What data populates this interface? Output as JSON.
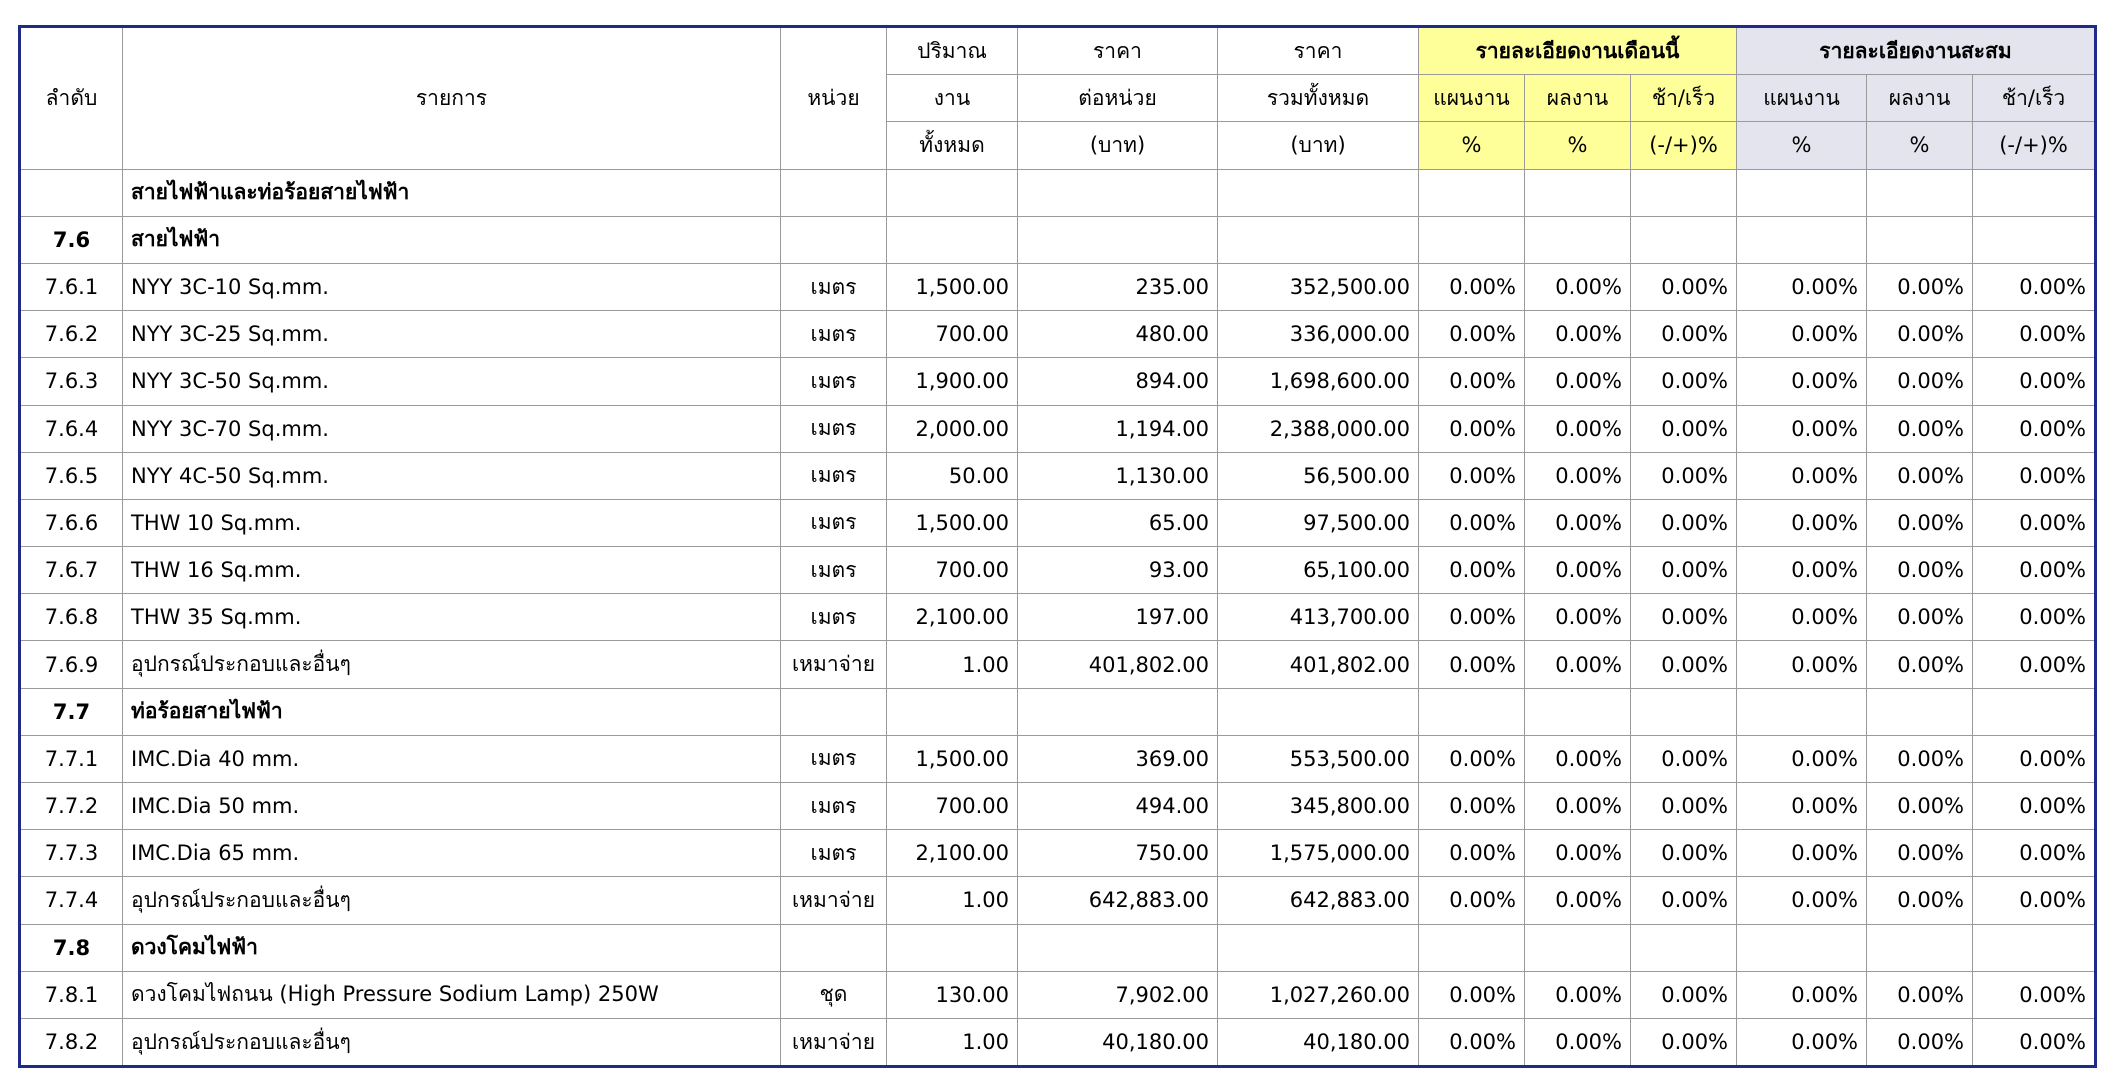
{
  "header": {
    "seq": "ลำดับ",
    "item": "รายการ",
    "unit": "หน่วย",
    "qty": [
      "ปริมาณ",
      "งาน",
      "ทั้งหมด"
    ],
    "unit_price": [
      "ราคา",
      "ต่อหน่วย",
      "(บาท)"
    ],
    "total_price": [
      "ราคา",
      "รวมทั้งหมด",
      "(บาท)"
    ],
    "monthly_group": "รายละเอียดงานเดือนนี้",
    "cumulative_group": "รายละเอียดงานสะสม",
    "plan": "แผนงาน",
    "result": "ผลงาน",
    "diff": "ช้า/เร็ว",
    "pct": "%",
    "diff_pct": "(-/+)%"
  },
  "title_row": "สายไฟฟ้าและท่อร้อยสายไฟฟ้า",
  "rows": [
    {
      "type": "section",
      "seq": "7.6",
      "item": "สายไฟฟ้า"
    },
    {
      "type": "item",
      "seq": "7.6.1",
      "item": "NYY 3C-10 Sq.mm.",
      "unit": "เมตร",
      "qty": "1,500.00",
      "price": "235.00",
      "total": "352,500.00",
      "m_plan": "0.00%",
      "m_result": "0.00%",
      "m_diff": "0.00%",
      "c_plan": "0.00%",
      "c_result": "0.00%",
      "c_diff": "0.00%"
    },
    {
      "type": "item",
      "seq": "7.6.2",
      "item": "NYY 3C-25 Sq.mm.",
      "unit": "เมตร",
      "qty": "700.00",
      "price": "480.00",
      "total": "336,000.00",
      "m_plan": "0.00%",
      "m_result": "0.00%",
      "m_diff": "0.00%",
      "c_plan": "0.00%",
      "c_result": "0.00%",
      "c_diff": "0.00%"
    },
    {
      "type": "item",
      "seq": "7.6.3",
      "item": "NYY 3C-50 Sq.mm.",
      "unit": "เมตร",
      "qty": "1,900.00",
      "price": "894.00",
      "total": "1,698,600.00",
      "m_plan": "0.00%",
      "m_result": "0.00%",
      "m_diff": "0.00%",
      "c_plan": "0.00%",
      "c_result": "0.00%",
      "c_diff": "0.00%"
    },
    {
      "type": "item",
      "seq": "7.6.4",
      "item": "NYY 3C-70 Sq.mm.",
      "unit": "เมตร",
      "qty": "2,000.00",
      "price": "1,194.00",
      "total": "2,388,000.00",
      "m_plan": "0.00%",
      "m_result": "0.00%",
      "m_diff": "0.00%",
      "c_plan": "0.00%",
      "c_result": "0.00%",
      "c_diff": "0.00%"
    },
    {
      "type": "item",
      "seq": "7.6.5",
      "item": "NYY 4C-50 Sq.mm.",
      "unit": "เมตร",
      "qty": "50.00",
      "price": "1,130.00",
      "total": "56,500.00",
      "m_plan": "0.00%",
      "m_result": "0.00%",
      "m_diff": "0.00%",
      "c_plan": "0.00%",
      "c_result": "0.00%",
      "c_diff": "0.00%"
    },
    {
      "type": "item",
      "seq": "7.6.6",
      "item": "THW 10 Sq.mm.",
      "unit": "เมตร",
      "qty": "1,500.00",
      "price": "65.00",
      "total": "97,500.00",
      "m_plan": "0.00%",
      "m_result": "0.00%",
      "m_diff": "0.00%",
      "c_plan": "0.00%",
      "c_result": "0.00%",
      "c_diff": "0.00%"
    },
    {
      "type": "item",
      "seq": "7.6.7",
      "item": "THW 16 Sq.mm.",
      "unit": "เมตร",
      "qty": "700.00",
      "price": "93.00",
      "total": "65,100.00",
      "m_plan": "0.00%",
      "m_result": "0.00%",
      "m_diff": "0.00%",
      "c_plan": "0.00%",
      "c_result": "0.00%",
      "c_diff": "0.00%"
    },
    {
      "type": "item",
      "seq": "7.6.8",
      "item": "THW 35 Sq.mm.",
      "unit": "เมตร",
      "qty": "2,100.00",
      "price": "197.00",
      "total": "413,700.00",
      "m_plan": "0.00%",
      "m_result": "0.00%",
      "m_diff": "0.00%",
      "c_plan": "0.00%",
      "c_result": "0.00%",
      "c_diff": "0.00%"
    },
    {
      "type": "item",
      "seq": "7.6.9",
      "item": "อุปกรณ์ประกอบและอื่นๆ",
      "unit": "เหมาจ่าย",
      "qty": "1.00",
      "price": "401,802.00",
      "total": "401,802.00",
      "m_plan": "0.00%",
      "m_result": "0.00%",
      "m_diff": "0.00%",
      "c_plan": "0.00%",
      "c_result": "0.00%",
      "c_diff": "0.00%"
    },
    {
      "type": "section",
      "seq": "7.7",
      "item": "ท่อร้อยสายไฟฟ้า"
    },
    {
      "type": "item",
      "seq": "7.7.1",
      "item": "IMC.Dia 40 mm.",
      "unit": "เมตร",
      "qty": "1,500.00",
      "price": "369.00",
      "total": "553,500.00",
      "m_plan": "0.00%",
      "m_result": "0.00%",
      "m_diff": "0.00%",
      "c_plan": "0.00%",
      "c_result": "0.00%",
      "c_diff": "0.00%"
    },
    {
      "type": "item",
      "seq": "7.7.2",
      "item": "IMC.Dia 50 mm.",
      "unit": "เมตร",
      "qty": "700.00",
      "price": "494.00",
      "total": "345,800.00",
      "m_plan": "0.00%",
      "m_result": "0.00%",
      "m_diff": "0.00%",
      "c_plan": "0.00%",
      "c_result": "0.00%",
      "c_diff": "0.00%"
    },
    {
      "type": "item",
      "seq": "7.7.3",
      "item": "IMC.Dia 65 mm.",
      "unit": "เมตร",
      "qty": "2,100.00",
      "price": "750.00",
      "total": "1,575,000.00",
      "m_plan": "0.00%",
      "m_result": "0.00%",
      "m_diff": "0.00%",
      "c_plan": "0.00%",
      "c_result": "0.00%",
      "c_diff": "0.00%"
    },
    {
      "type": "item",
      "seq": "7.7.4",
      "item": "อุปกรณ์ประกอบและอื่นๆ",
      "unit": "เหมาจ่าย",
      "qty": "1.00",
      "price": "642,883.00",
      "total": "642,883.00",
      "m_plan": "0.00%",
      "m_result": "0.00%",
      "m_diff": "0.00%",
      "c_plan": "0.00%",
      "c_result": "0.00%",
      "c_diff": "0.00%"
    },
    {
      "type": "section",
      "seq": "7.8",
      "item": "ดวงโคมไฟฟ้า"
    },
    {
      "type": "item",
      "seq": "7.8.1",
      "item": "ดวงโคมไฟถนน (High Pressure Sodium Lamp) 250W",
      "unit": "ชุด",
      "qty": "130.00",
      "price": "7,902.00",
      "total": "1,027,260.00",
      "m_plan": "0.00%",
      "m_result": "0.00%",
      "m_diff": "0.00%",
      "c_plan": "0.00%",
      "c_result": "0.00%",
      "c_diff": "0.00%"
    },
    {
      "type": "item",
      "seq": "7.8.2",
      "item": "อุปกรณ์ประกอบและอื่นๆ",
      "unit": "เหมาจ่าย",
      "qty": "1.00",
      "price": "40,180.00",
      "total": "40,180.00",
      "m_plan": "0.00%",
      "m_result": "0.00%",
      "m_diff": "0.00%",
      "c_plan": "0.00%",
      "c_result": "0.00%",
      "c_diff": "0.00%"
    }
  ]
}
